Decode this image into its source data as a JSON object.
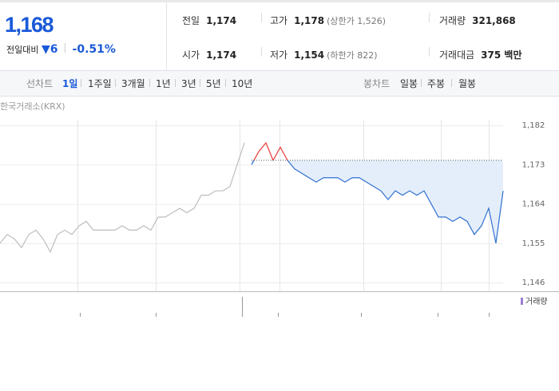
{
  "quote": {
    "price": "1,168",
    "change_label": "전일대비",
    "change": "6",
    "change_pct": "-0.51%"
  },
  "stats": [
    {
      "label": "전일",
      "value": "1,174"
    },
    {
      "label": "고가",
      "value": "1,178",
      "note": "(상한가 1,526)"
    },
    {
      "label": "거래량",
      "value": "321,868"
    },
    {
      "label": "시가",
      "value": "1,174"
    },
    {
      "label": "저가",
      "value": "1,154",
      "note": "(하한가 822)"
    },
    {
      "label": "거래대금",
      "value": "375 백만"
    }
  ],
  "tabs": {
    "line_label": "선차트",
    "line_periods": [
      "1일",
      "1주일",
      "3개월",
      "1년",
      "3년",
      "5년",
      "10년"
    ],
    "candle_label": "봉차트",
    "candle_periods": [
      "일봉",
      "주봉",
      "월봉"
    ]
  },
  "chart_data": {
    "type": "line",
    "source": "한국거래소(KRX)",
    "volume_label": "거래량",
    "x": [
      0,
      1,
      2,
      3,
      4,
      5,
      6,
      7,
      8,
      9,
      10,
      11,
      12,
      13,
      14,
      15,
      16,
      17,
      18,
      19,
      20,
      21,
      22,
      23,
      24,
      25,
      26,
      27,
      28,
      29,
      30,
      31,
      32,
      33,
      34,
      35,
      36,
      37,
      38,
      39,
      40,
      41,
      42,
      43,
      44,
      45,
      46,
      47,
      48,
      49,
      50,
      51,
      52,
      53,
      54,
      55,
      56,
      57,
      58,
      59,
      60,
      61,
      62,
      63,
      64,
      65,
      66,
      67,
      68,
      69,
      70
    ],
    "xlim": [
      0,
      70
    ],
    "series": [
      {
        "color": "#bdbdbd",
        "values": [
          1155,
          1157,
          1156,
          1154,
          1157,
          1158,
          1156,
          1153,
          1157,
          1158,
          1157,
          1159,
          1160,
          1158,
          1158,
          1158,
          1158,
          1159,
          1158,
          1158,
          1159,
          1158,
          1161,
          1161,
          1162,
          1163,
          1162,
          1163,
          1166,
          1166,
          1167,
          1167,
          1168,
          1173,
          1178,
          null,
          null,
          null,
          null,
          null,
          null,
          null,
          null,
          null,
          null,
          null,
          null,
          null,
          null,
          null,
          null,
          null,
          null,
          null,
          null,
          null,
          null,
          null,
          null,
          null,
          null,
          null,
          null,
          null,
          null,
          null,
          null,
          null,
          null,
          null,
          null
        ]
      },
      {
        "color": "#2f6fd0",
        "values": [
          null,
          null,
          null,
          null,
          null,
          null,
          null,
          null,
          null,
          null,
          null,
          null,
          null,
          null,
          null,
          null,
          null,
          null,
          null,
          null,
          null,
          null,
          null,
          null,
          null,
          null,
          null,
          null,
          null,
          null,
          null,
          null,
          null,
          null,
          null,
          1173,
          1176,
          1178,
          1174,
          1177,
          1174,
          1172,
          1171,
          1170,
          1169,
          1170,
          1170,
          1170,
          1169,
          1170,
          1170,
          1169,
          1168,
          1167,
          1165,
          1167,
          1166,
          1167,
          1166,
          1167,
          1164,
          1161,
          1161,
          1160,
          1161,
          1160,
          1157,
          1159,
          1163,
          1155,
          1167
        ]
      }
    ],
    "reference": 1174,
    "above_color": "#e53935",
    "fill_color": "#e4eefa",
    "ylim": [
      1144,
      1183.3
    ],
    "yticks": [
      {
        "value": 1182,
        "label": "1,182"
      },
      {
        "value": 1173,
        "label": "1,173"
      },
      {
        "value": 1164,
        "label": "1,164"
      },
      {
        "value": 1155,
        "label": "1,155"
      },
      {
        "value": 1146,
        "label": "1,146"
      }
    ],
    "grid": true
  }
}
